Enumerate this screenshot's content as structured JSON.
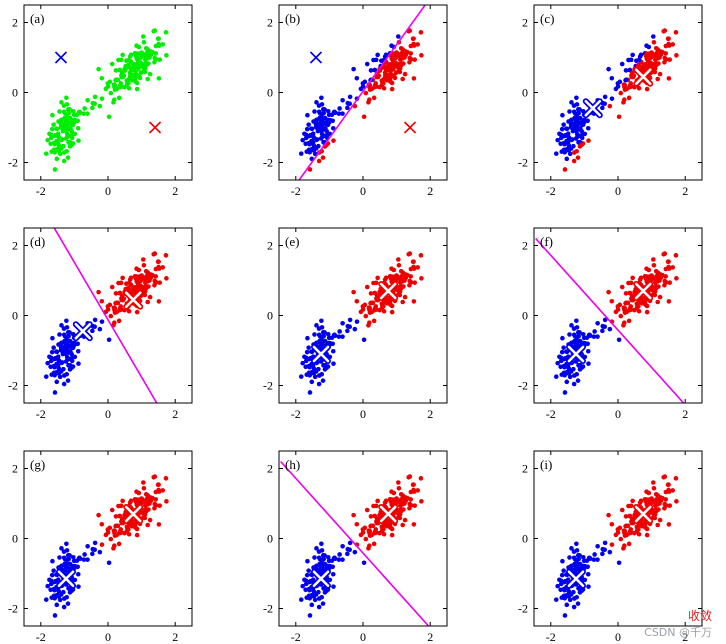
{
  "chart_data": {
    "type": "scatter",
    "xlim": [
      -2.5,
      2.5
    ],
    "ylim": [
      -2.5,
      2.5
    ],
    "xticks": [
      -2,
      0,
      2
    ],
    "yticks": [
      -2,
      0,
      2
    ],
    "colors": {
      "unassigned": "#00ee00",
      "cluster1": "#0000ee",
      "cluster2": "#ee0000",
      "boundary": "#ee00ee"
    },
    "clusters": {
      "lower_left": {
        "center": [
          -1.3,
          -1.15
        ],
        "spread": [
          0.22,
          0.4
        ],
        "count": 110
      },
      "upper_right": {
        "center": [
          0.8,
          0.75
        ],
        "spread": [
          0.35,
          0.38
        ],
        "count": 160
      }
    },
    "panels": [
      {
        "label": "(a)",
        "coloring": "unassigned",
        "centroids": [
          {
            "x": -1.4,
            "y": 1.0,
            "color": "cluster1",
            "marker": "cross"
          },
          {
            "x": 1.4,
            "y": -1.0,
            "color": "cluster2",
            "marker": "cross"
          }
        ],
        "boundary": null
      },
      {
        "label": "(b)",
        "coloring": "boundary_b",
        "centroids": [
          {
            "x": -1.4,
            "y": 1.0,
            "color": "cluster1",
            "marker": "cross"
          },
          {
            "x": 1.4,
            "y": -1.0,
            "color": "cluster2",
            "marker": "cross"
          }
        ],
        "boundary": {
          "p1": [
            -1.9,
            -2.5
          ],
          "p2": [
            1.85,
            2.5
          ]
        }
      },
      {
        "label": "(c)",
        "coloring": "boundary_b",
        "centroids": [
          {
            "x": -0.75,
            "y": -0.45,
            "color": "cluster1",
            "marker": "bigcross"
          },
          {
            "x": 0.75,
            "y": 0.45,
            "color": "cluster2",
            "marker": "bigcross"
          }
        ],
        "boundary": null
      },
      {
        "label": "(d)",
        "coloring": "boundary_d",
        "centroids": [
          {
            "x": -0.75,
            "y": -0.45,
            "color": "cluster1",
            "marker": "bigcross"
          },
          {
            "x": 0.75,
            "y": 0.45,
            "color": "cluster2",
            "marker": "bigcross"
          }
        ],
        "boundary": {
          "p1": [
            -1.6,
            2.5
          ],
          "p2": [
            1.45,
            -2.5
          ]
        }
      },
      {
        "label": "(e)",
        "coloring": "boundary_d",
        "centroids": [
          {
            "x": -1.25,
            "y": -1.1,
            "color": "cluster1",
            "marker": "bigcross"
          },
          {
            "x": 0.75,
            "y": 0.7,
            "color": "cluster2",
            "marker": "bigcross"
          }
        ],
        "boundary": null
      },
      {
        "label": "(f)",
        "coloring": "boundary_f",
        "centroids": [
          {
            "x": -1.25,
            "y": -1.1,
            "color": "cluster1",
            "marker": "bigcross"
          },
          {
            "x": 0.75,
            "y": 0.7,
            "color": "cluster2",
            "marker": "bigcross"
          }
        ],
        "boundary": {
          "p1": [
            -2.45,
            2.2
          ],
          "p2": [
            1.95,
            -2.5
          ]
        }
      },
      {
        "label": "(g)",
        "coloring": "boundary_f",
        "centroids": [
          {
            "x": -1.25,
            "y": -1.15,
            "color": "cluster1",
            "marker": "bigcross"
          },
          {
            "x": 0.75,
            "y": 0.7,
            "color": "cluster2",
            "marker": "bigcross"
          }
        ],
        "boundary": null
      },
      {
        "label": "(h)",
        "coloring": "boundary_f",
        "centroids": [
          {
            "x": -1.25,
            "y": -1.15,
            "color": "cluster1",
            "marker": "bigcross"
          },
          {
            "x": 0.75,
            "y": 0.7,
            "color": "cluster2",
            "marker": "bigcross"
          }
        ],
        "boundary": {
          "p1": [
            -2.45,
            2.2
          ],
          "p2": [
            1.95,
            -2.5
          ]
        }
      },
      {
        "label": "(i)",
        "coloring": "boundary_f",
        "centroids": [
          {
            "x": -1.25,
            "y": -1.15,
            "color": "cluster1",
            "marker": "bigcross"
          },
          {
            "x": 0.75,
            "y": 0.7,
            "color": "cluster2",
            "marker": "bigcross"
          }
        ],
        "boundary": null
      }
    ]
  },
  "watermark": {
    "top": "收敛",
    "bottom": "CSDN @千万"
  }
}
